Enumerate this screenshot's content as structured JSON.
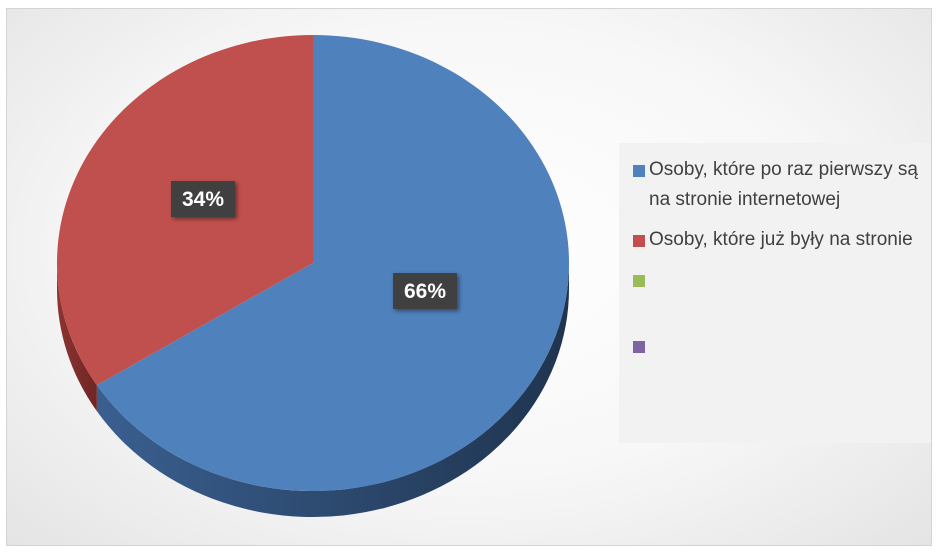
{
  "chart_data": {
    "type": "pie",
    "style": "3d",
    "slices": [
      {
        "label": "Osoby, które po raz pierwszy są na stronie internetowej",
        "value": 66,
        "data_label": "66%",
        "color": "#4f81bd"
      },
      {
        "label": "Osoby, które już były na stronie",
        "value": 34,
        "data_label": "34%",
        "color": "#c0504d"
      },
      {
        "label": "",
        "value": 0,
        "color": "#9bbb59"
      },
      {
        "label": "",
        "value": 0,
        "color": "#8064a2"
      }
    ],
    "legend_position": "right"
  }
}
